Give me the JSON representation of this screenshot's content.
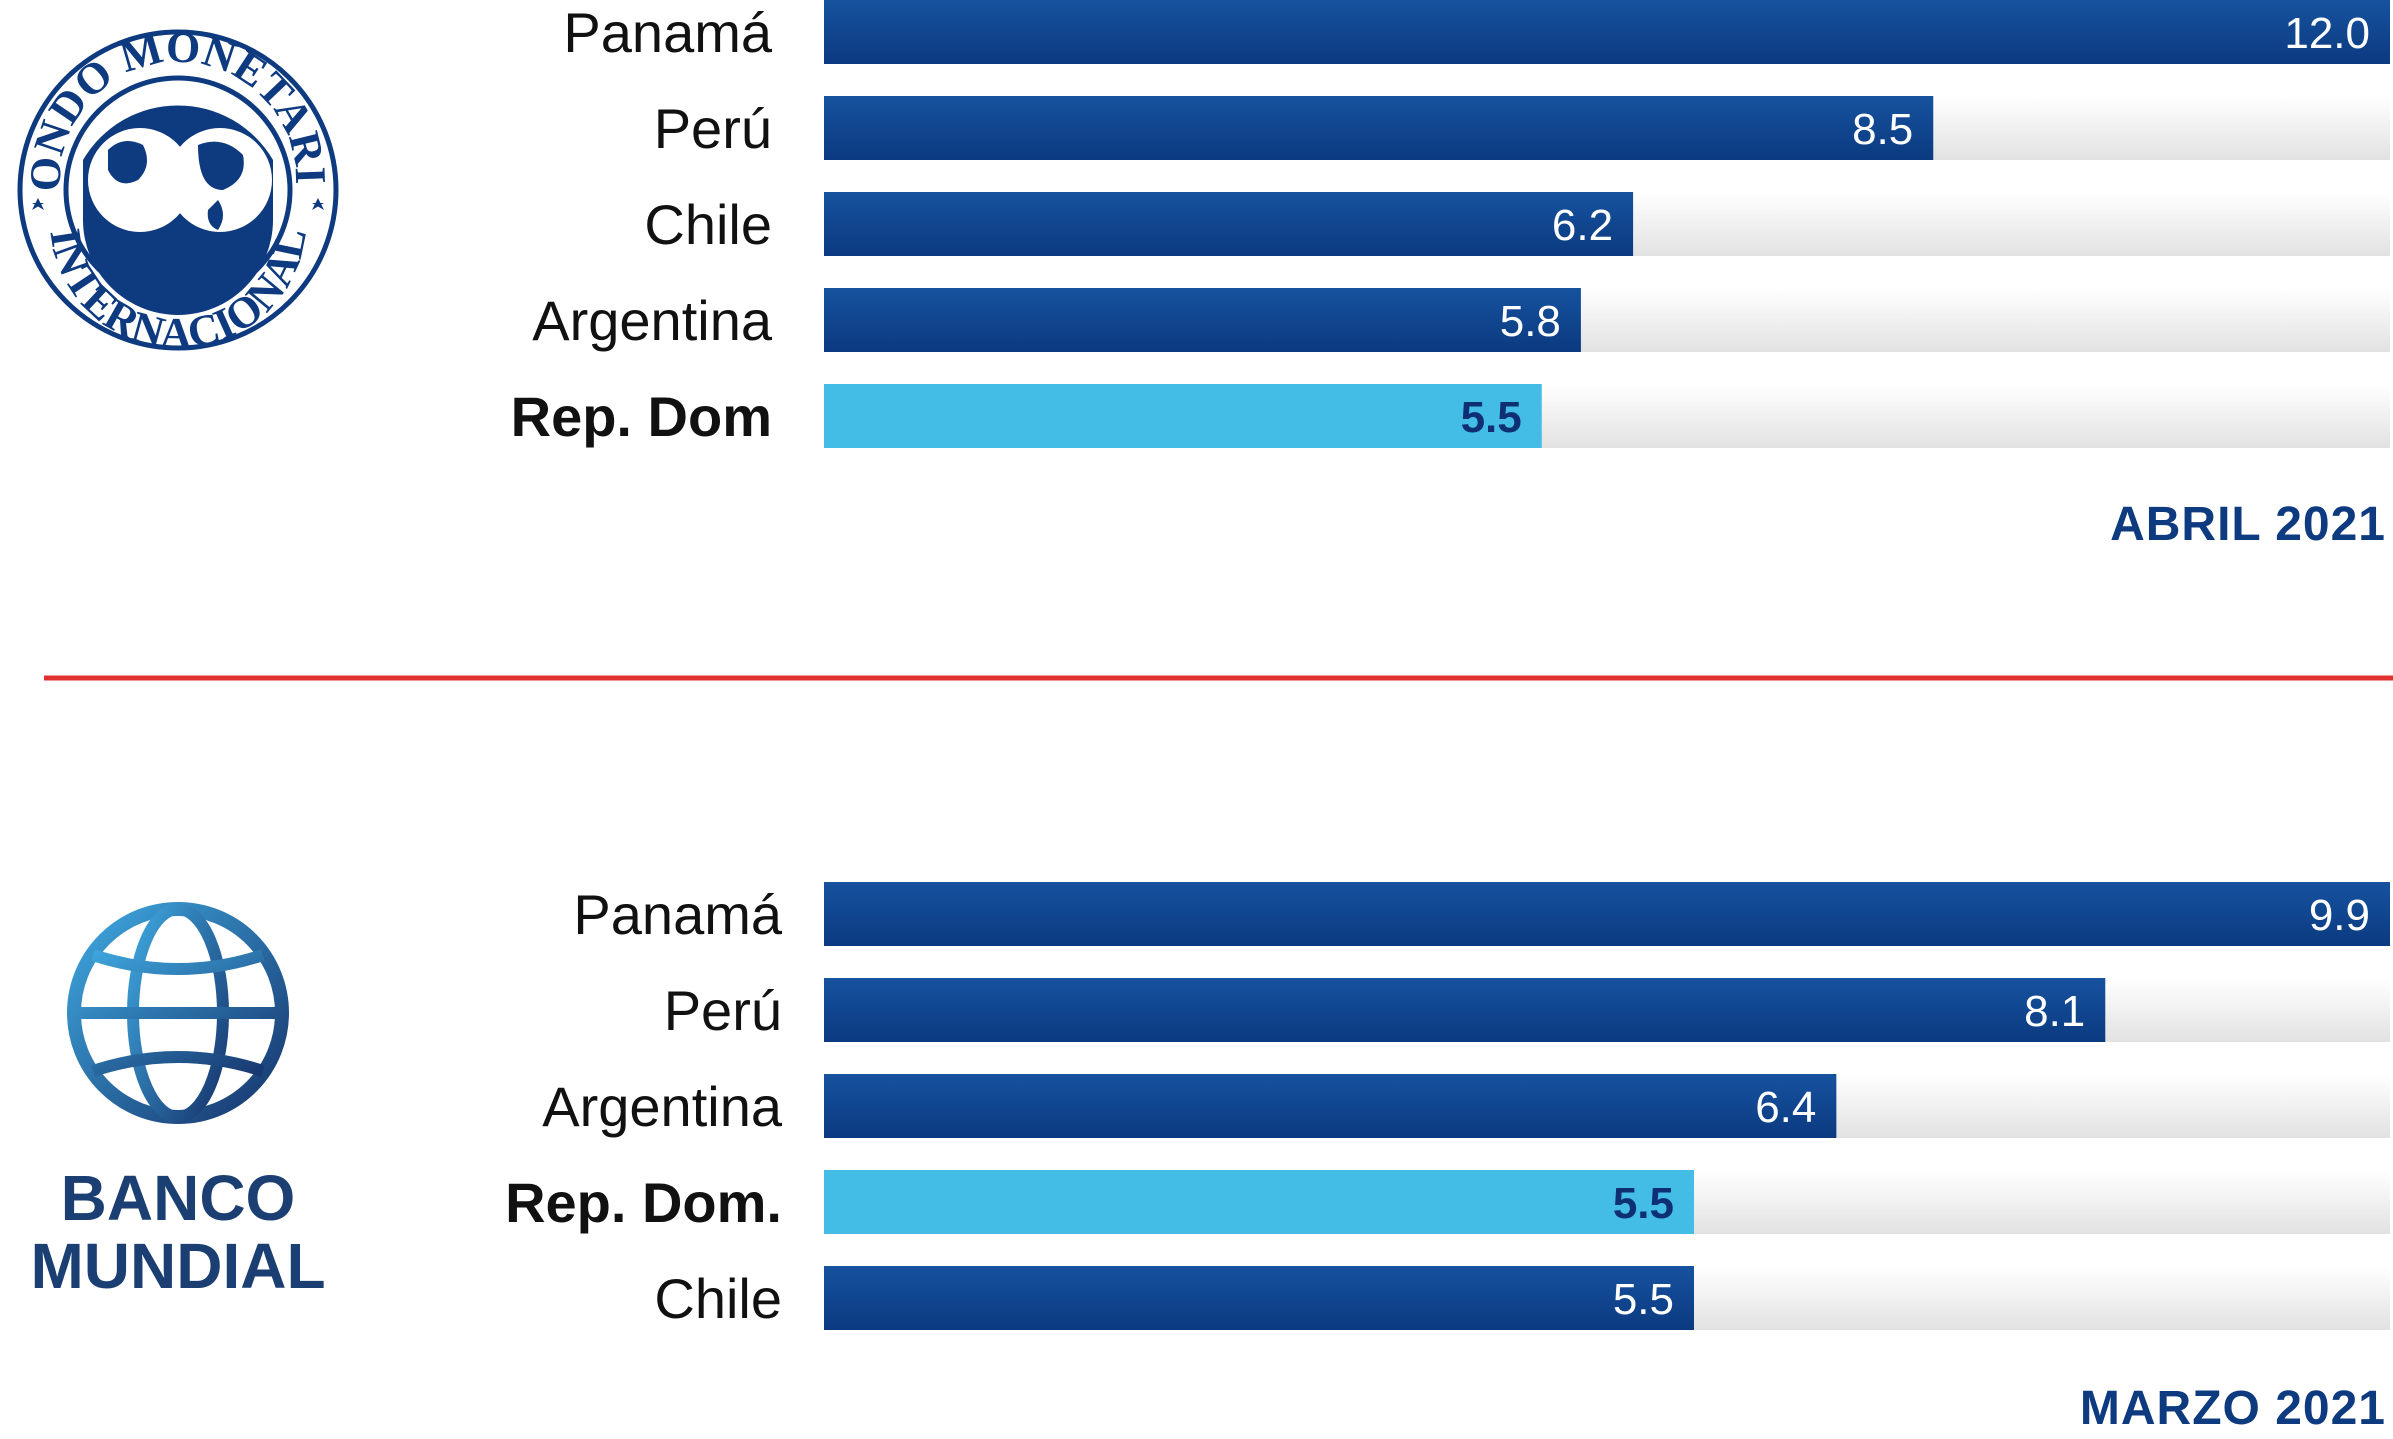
{
  "chart_data": [
    {
      "type": "bar",
      "orientation": "horizontal",
      "institution_logo": "Fondo Monetario Internacional",
      "logo_text": [
        "FONDO MONETARIO",
        "INTERNACIONAL"
      ],
      "period": "ABRIL 2021",
      "categories": [
        "Panamá",
        "Perú",
        "Chile",
        "Argentina",
        "Rep. Dom"
      ],
      "values": [
        12.0,
        8.5,
        6.2,
        5.8,
        5.5
      ],
      "labels": [
        "12.0",
        "8.5",
        "6.2",
        "5.8",
        "5.5"
      ],
      "highlight": "Rep. Dom",
      "xlim": [
        0,
        12
      ]
    },
    {
      "type": "bar",
      "orientation": "horizontal",
      "institution_logo": "Banco Mundial",
      "logo_text": [
        "BANCO",
        "MUNDIAL"
      ],
      "period": "MARZO 2021",
      "categories": [
        "Panamá",
        "Perú",
        "Argentina",
        "Rep. Dom.",
        "Chile"
      ],
      "values": [
        9.9,
        8.1,
        6.4,
        5.5,
        5.5
      ],
      "labels": [
        "9.9",
        "8.1",
        "6.4",
        "5.5",
        "5.5"
      ],
      "highlight": "Rep. Dom.",
      "xlim": [
        0,
        9.9
      ]
    }
  ],
  "colors": {
    "bar": "#0e3f8c",
    "bar_highlight": "#43bce6",
    "track": "#ececec",
    "divider": "#e0302f",
    "text_dark": "#111111",
    "accent": "#0e3a80"
  },
  "icons": [
    "imf-seal-icon",
    "world-bank-globe-icon"
  ]
}
